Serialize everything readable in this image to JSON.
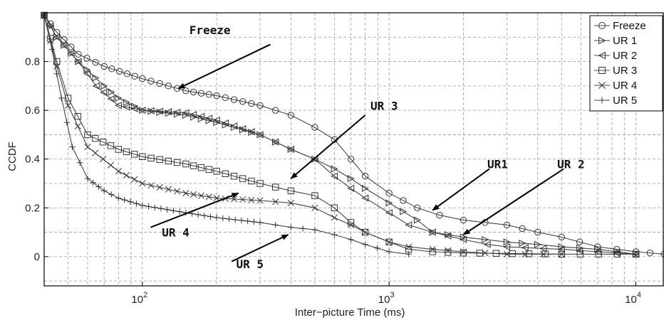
{
  "chart_data": {
    "type": "line",
    "title": "",
    "xlabel": "Inter−picture Time (ms)",
    "ylabel": "CCDF",
    "x_scale": "log",
    "xlim": [
      40,
      13000
    ],
    "ylim": [
      -0.12,
      1.0
    ],
    "x_ticks": [
      100,
      1000,
      10000
    ],
    "x_tick_labels": [
      {
        "base": "10",
        "exp": "2"
      },
      {
        "base": "10",
        "exp": "3"
      },
      {
        "base": "10",
        "exp": "4"
      }
    ],
    "y_ticks": [
      0,
      0.2,
      0.4,
      0.6,
      0.8
    ],
    "y_tick_labels": [
      "0",
      "0.2",
      "0.4",
      "0.6",
      "0.8"
    ],
    "grid": true,
    "legend_position": "top-right",
    "series": [
      {
        "name": "Freeze",
        "marker": "circle",
        "points": [
          [
            40,
            0.99
          ],
          [
            45,
            0.92
          ],
          [
            55,
            0.83
          ],
          [
            70,
            0.78
          ],
          [
            100,
            0.73
          ],
          [
            150,
            0.68
          ],
          [
            200,
            0.66
          ],
          [
            300,
            0.62
          ],
          [
            400,
            0.58
          ],
          [
            500,
            0.53
          ],
          [
            600,
            0.48
          ],
          [
            700,
            0.4
          ],
          [
            800,
            0.33
          ],
          [
            1000,
            0.26
          ],
          [
            1300,
            0.2
          ],
          [
            1600,
            0.17
          ],
          [
            2000,
            0.15
          ],
          [
            3000,
            0.13
          ],
          [
            4000,
            0.1
          ],
          [
            5000,
            0.08
          ],
          [
            7000,
            0.04
          ],
          [
            10000,
            0.02
          ],
          [
            13000,
            0.01
          ]
        ]
      },
      {
        "name": "UR 1",
        "marker": "triangle-right",
        "points": [
          [
            40,
            0.99
          ],
          [
            45,
            0.9
          ],
          [
            55,
            0.8
          ],
          [
            70,
            0.7
          ],
          [
            80,
            0.65
          ],
          [
            100,
            0.6
          ],
          [
            150,
            0.58
          ],
          [
            200,
            0.55
          ],
          [
            300,
            0.5
          ],
          [
            400,
            0.44
          ],
          [
            500,
            0.4
          ],
          [
            600,
            0.36
          ],
          [
            700,
            0.32
          ],
          [
            800,
            0.28
          ],
          [
            1000,
            0.22
          ],
          [
            1300,
            0.15
          ],
          [
            1500,
            0.1
          ],
          [
            2000,
            0.08
          ],
          [
            3000,
            0.06
          ],
          [
            4000,
            0.05
          ],
          [
            5000,
            0.04
          ],
          [
            7000,
            0.03
          ],
          [
            10000,
            0.01
          ]
        ]
      },
      {
        "name": "UR 2",
        "marker": "triangle-left",
        "points": [
          [
            40,
            0.99
          ],
          [
            45,
            0.9
          ],
          [
            55,
            0.8
          ],
          [
            65,
            0.7
          ],
          [
            80,
            0.62
          ],
          [
            100,
            0.6
          ],
          [
            150,
            0.59
          ],
          [
            200,
            0.56
          ],
          [
            300,
            0.5
          ],
          [
            400,
            0.44
          ],
          [
            500,
            0.4
          ],
          [
            600,
            0.33
          ],
          [
            700,
            0.28
          ],
          [
            800,
            0.24
          ],
          [
            1000,
            0.18
          ],
          [
            1200,
            0.13
          ],
          [
            1500,
            0.1
          ],
          [
            2000,
            0.07
          ],
          [
            2500,
            0.05
          ],
          [
            3000,
            0.04
          ],
          [
            5000,
            0.03
          ],
          [
            7000,
            0.02
          ],
          [
            10000,
            0.01
          ]
        ]
      },
      {
        "name": "UR 3",
        "marker": "square",
        "points": [
          [
            40,
            0.99
          ],
          [
            45,
            0.8
          ],
          [
            50,
            0.65
          ],
          [
            60,
            0.5
          ],
          [
            80,
            0.44
          ],
          [
            100,
            0.41
          ],
          [
            150,
            0.38
          ],
          [
            200,
            0.35
          ],
          [
            300,
            0.3
          ],
          [
            400,
            0.27
          ],
          [
            500,
            0.25
          ],
          [
            600,
            0.2
          ],
          [
            700,
            0.14
          ],
          [
            800,
            0.1
          ],
          [
            1000,
            0.06
          ],
          [
            1200,
            0.03
          ],
          [
            1500,
            0.02
          ],
          [
            2000,
            0.015
          ],
          [
            5000,
            0.01
          ],
          [
            10000,
            0.01
          ]
        ]
      },
      {
        "name": "UR 4",
        "marker": "x",
        "points": [
          [
            40,
            0.99
          ],
          [
            45,
            0.78
          ],
          [
            50,
            0.62
          ],
          [
            60,
            0.45
          ],
          [
            80,
            0.35
          ],
          [
            100,
            0.3
          ],
          [
            150,
            0.26
          ],
          [
            200,
            0.24
          ],
          [
            300,
            0.23
          ],
          [
            400,
            0.22
          ],
          [
            500,
            0.2
          ],
          [
            600,
            0.16
          ],
          [
            700,
            0.13
          ],
          [
            800,
            0.1
          ],
          [
            1000,
            0.06
          ],
          [
            1200,
            0.04
          ],
          [
            1500,
            0.03
          ],
          [
            2000,
            0.02
          ],
          [
            3000,
            0.01
          ],
          [
            5000,
            0.01
          ]
        ]
      },
      {
        "name": "UR 5",
        "marker": "plus",
        "points": [
          [
            40,
            0.99
          ],
          [
            43,
            0.85
          ],
          [
            47,
            0.65
          ],
          [
            52,
            0.45
          ],
          [
            60,
            0.32
          ],
          [
            70,
            0.27
          ],
          [
            80,
            0.24
          ],
          [
            100,
            0.21
          ],
          [
            150,
            0.18
          ],
          [
            200,
            0.16
          ],
          [
            300,
            0.14
          ],
          [
            400,
            0.12
          ],
          [
            500,
            0.11
          ],
          [
            600,
            0.09
          ],
          [
            700,
            0.07
          ],
          [
            800,
            0.05
          ],
          [
            1000,
            0.02
          ],
          [
            1200,
            0.01
          ]
        ]
      }
    ],
    "annotations": [
      {
        "text": "Freeze",
        "text_at": [
          155,
          0.93
        ],
        "arrow_from": [
          330,
          0.87
        ],
        "arrow_to": [
          140,
          0.69
        ]
      },
      {
        "text": "UR 3",
        "text_at": [
          840,
          0.62
        ],
        "arrow_from": [
          800,
          0.58
        ],
        "arrow_to": [
          400,
          0.32
        ]
      },
      {
        "text": "UR1",
        "text_at": [
          2500,
          0.38
        ],
        "arrow_from": [
          2550,
          0.36
        ],
        "arrow_to": [
          1500,
          0.19
        ]
      },
      {
        "text": "UR 2",
        "text_at": [
          4800,
          0.38
        ],
        "arrow_from": [
          5100,
          0.36
        ],
        "arrow_to": [
          2000,
          0.09
        ]
      },
      {
        "text": "UR 4",
        "text_at": [
          120,
          0.1
        ],
        "arrow_from": [
          108,
          0.12
        ],
        "arrow_to": [
          245,
          0.26
        ]
      },
      {
        "text": "UR 5",
        "text_at": [
          240,
          -0.03
        ],
        "arrow_from": [
          230,
          -0.02
        ],
        "arrow_to": [
          390,
          0.09
        ]
      }
    ]
  }
}
